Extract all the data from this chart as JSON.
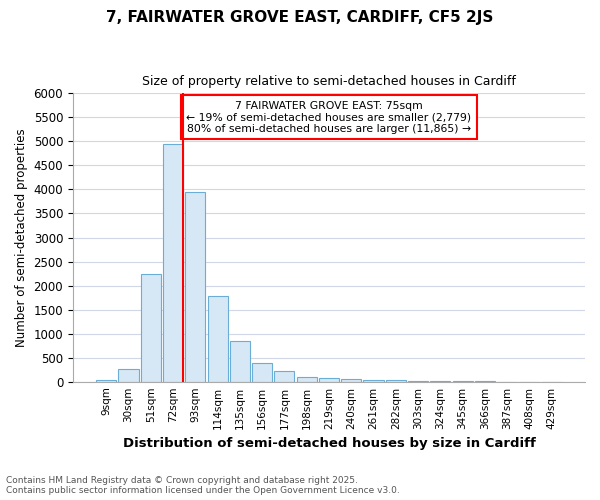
{
  "title": "7, FAIRWATER GROVE EAST, CARDIFF, CF5 2JS",
  "subtitle": "Size of property relative to semi-detached houses in Cardiff",
  "xlabel": "Distribution of semi-detached houses by size in Cardiff",
  "ylabel": "Number of semi-detached properties",
  "bins": [
    "9sqm",
    "30sqm",
    "51sqm",
    "72sqm",
    "93sqm",
    "114sqm",
    "135sqm",
    "156sqm",
    "177sqm",
    "198sqm",
    "219sqm",
    "240sqm",
    "261sqm",
    "282sqm",
    "303sqm",
    "324sqm",
    "345sqm",
    "366sqm",
    "387sqm",
    "408sqm",
    "429sqm"
  ],
  "values": [
    30,
    270,
    2250,
    4950,
    3950,
    1780,
    850,
    380,
    215,
    105,
    70,
    50,
    35,
    25,
    15,
    10,
    7,
    5,
    3,
    2,
    1
  ],
  "bar_color": "#d6e8f5",
  "bar_edge_color": "#6aaed6",
  "property_line_color": "red",
  "annotation_title": "7 FAIRWATER GROVE EAST: 75sqm",
  "annotation_smaller": "← 19% of semi-detached houses are smaller (2,779)",
  "annotation_larger": "80% of semi-detached houses are larger (11,865) →",
  "annotation_box_color": "red",
  "ylim": [
    0,
    6000
  ],
  "yticks": [
    0,
    500,
    1000,
    1500,
    2000,
    2500,
    3000,
    3500,
    4000,
    4500,
    5000,
    5500,
    6000
  ],
  "footer_line1": "Contains HM Land Registry data © Crown copyright and database right 2025.",
  "footer_line2": "Contains public sector information licensed under the Open Government Licence v3.0.",
  "bg_color": "#ffffff",
  "grid_color": "#d0d8e8"
}
